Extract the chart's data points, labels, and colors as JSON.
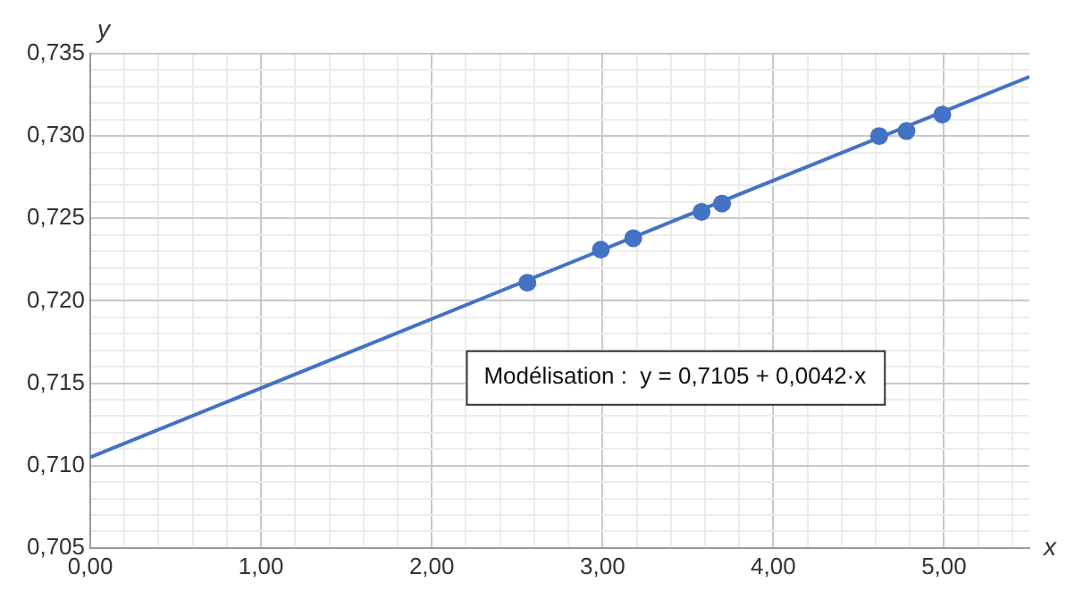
{
  "chart_data": {
    "type": "scatter",
    "xlabel": "x",
    "ylabel": "y",
    "xlim": [
      0,
      5.5
    ],
    "ylim": [
      0.705,
      0.735
    ],
    "xticks": [
      {
        "value": 0,
        "label": "0,00"
      },
      {
        "value": 0.2,
        "label": null
      },
      {
        "value": 0.4,
        "label": null
      },
      {
        "value": 0.6,
        "label": null
      },
      {
        "value": 0.8,
        "label": null
      },
      {
        "value": 1,
        "label": "1,00"
      },
      {
        "value": 1.2,
        "label": null
      },
      {
        "value": 1.4,
        "label": null
      },
      {
        "value": 1.6,
        "label": null
      },
      {
        "value": 1.8,
        "label": null
      },
      {
        "value": 2,
        "label": "2,00"
      },
      {
        "value": 2.2,
        "label": null
      },
      {
        "value": 2.4,
        "label": null
      },
      {
        "value": 2.6,
        "label": null
      },
      {
        "value": 2.8,
        "label": null
      },
      {
        "value": 3,
        "label": "3,00"
      },
      {
        "value": 3.2,
        "label": null
      },
      {
        "value": 3.4,
        "label": null
      },
      {
        "value": 3.6,
        "label": null
      },
      {
        "value": 3.8,
        "label": null
      },
      {
        "value": 4,
        "label": "4,00"
      },
      {
        "value": 4.2,
        "label": null
      },
      {
        "value": 4.4,
        "label": null
      },
      {
        "value": 4.6,
        "label": null
      },
      {
        "value": 4.8,
        "label": null
      },
      {
        "value": 5,
        "label": "5,00"
      },
      {
        "value": 5.2,
        "label": null
      },
      {
        "value": 5.4,
        "label": null
      }
    ],
    "yticks": [
      {
        "value": 0.705,
        "label": "0,705"
      },
      {
        "value": 0.706,
        "label": null
      },
      {
        "value": 0.707,
        "label": null
      },
      {
        "value": 0.708,
        "label": null
      },
      {
        "value": 0.709,
        "label": null
      },
      {
        "value": 0.71,
        "label": "0,710"
      },
      {
        "value": 0.711,
        "label": null
      },
      {
        "value": 0.712,
        "label": null
      },
      {
        "value": 0.713,
        "label": null
      },
      {
        "value": 0.714,
        "label": null
      },
      {
        "value": 0.715,
        "label": "0,715"
      },
      {
        "value": 0.716,
        "label": null
      },
      {
        "value": 0.717,
        "label": null
      },
      {
        "value": 0.718,
        "label": null
      },
      {
        "value": 0.719,
        "label": null
      },
      {
        "value": 0.72,
        "label": "0,720"
      },
      {
        "value": 0.721,
        "label": null
      },
      {
        "value": 0.722,
        "label": null
      },
      {
        "value": 0.723,
        "label": null
      },
      {
        "value": 0.724,
        "label": null
      },
      {
        "value": 0.725,
        "label": "0,725"
      },
      {
        "value": 0.726,
        "label": null
      },
      {
        "value": 0.727,
        "label": null
      },
      {
        "value": 0.728,
        "label": null
      },
      {
        "value": 0.729,
        "label": null
      },
      {
        "value": 0.73,
        "label": "0,730"
      },
      {
        "value": 0.731,
        "label": null
      },
      {
        "value": 0.732,
        "label": null
      },
      {
        "value": 0.733,
        "label": null
      },
      {
        "value": 0.734,
        "label": null
      },
      {
        "value": 0.735,
        "label": "0,735"
      }
    ],
    "grid": true,
    "legend": false,
    "marker": "circle",
    "annotations": [
      "Modélisation :  y = 0,7105 + 0,0042·x"
    ],
    "series": [
      {
        "type": "scatter",
        "color": "#4472c4",
        "x": [
          2.56,
          2.99,
          3.18,
          3.58,
          3.7,
          4.62,
          4.78,
          4.99
        ],
        "values": [
          0.7211,
          0.7231,
          0.7238,
          0.7254,
          0.7259,
          0.73,
          0.7303,
          0.7313
        ]
      },
      {
        "type": "line",
        "color": "#4472c4",
        "x": [
          0,
          5.5
        ],
        "values": [
          0.7105,
          0.7336
        ],
        "marker": "none",
        "line_style": "solid"
      }
    ]
  }
}
